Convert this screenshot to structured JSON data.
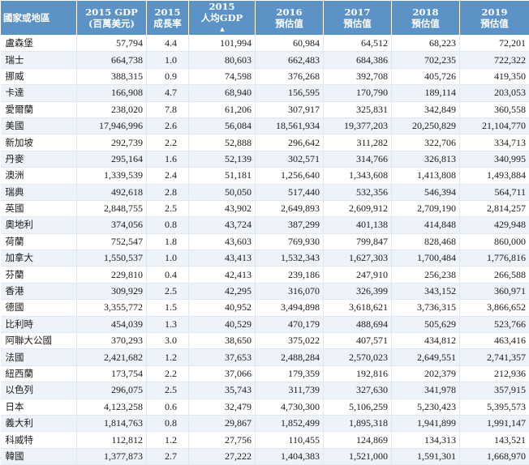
{
  "header": {
    "country": "國家或地區",
    "gdp": [
      "2015 GDP",
      "(百萬美元)"
    ],
    "growth": [
      "2015",
      "成長率"
    ],
    "per_capita": [
      "2015",
      "人均GDP"
    ],
    "y2016": [
      "2016",
      "預估值"
    ],
    "y2017": [
      "2017",
      "預估值"
    ],
    "y2018": [
      "2018",
      "預估值"
    ],
    "y2019": [
      "2019",
      "預估值"
    ]
  },
  "rows": [
    [
      "盧森堡",
      "57,794",
      "4.4",
      "101,994",
      "60,984",
      "64,512",
      "68,223",
      "72,201"
    ],
    [
      "瑞士",
      "664,738",
      "1.0",
      "80,603",
      "662,483",
      "684,386",
      "702,235",
      "722,322"
    ],
    [
      "挪威",
      "388,315",
      "0.9",
      "74,598",
      "376,268",
      "392,708",
      "405,726",
      "419,350"
    ],
    [
      "卡達",
      "166,908",
      "4.7",
      "68,940",
      "156,595",
      "170,790",
      "189,114",
      "203,053"
    ],
    [
      "愛爾蘭",
      "238,020",
      "7.8",
      "61,206",
      "307,917",
      "325,831",
      "342,849",
      "360,558"
    ],
    [
      "美國",
      "17,946,996",
      "2.6",
      "56,084",
      "18,561,934",
      "19,377,203",
      "20,250,829",
      "21,104,770"
    ],
    [
      "新加坡",
      "292,739",
      "2.2",
      "52,888",
      "296,642",
      "311,282",
      "322,706",
      "334,713"
    ],
    [
      "丹麥",
      "295,164",
      "1.6",
      "52,139",
      "302,571",
      "314,766",
      "326,813",
      "340,995"
    ],
    [
      "澳洲",
      "1,339,539",
      "2.4",
      "51,181",
      "1,256,640",
      "1,343,608",
      "1,413,808",
      "1,493,884"
    ],
    [
      "瑞典",
      "492,618",
      "2.8",
      "50,050",
      "517,440",
      "532,356",
      "546,394",
      "564,711"
    ],
    [
      "英國",
      "2,848,755",
      "2.5",
      "43,902",
      "2,649,893",
      "2,609,912",
      "2,709,190",
      "2,814,257"
    ],
    [
      "奧地利",
      "374,056",
      "0.8",
      "43,724",
      "387,299",
      "401,138",
      "414,848",
      "429,948"
    ],
    [
      "荷蘭",
      "752,547",
      "1.8",
      "43,603",
      "769,930",
      "799,847",
      "828,468",
      "860,000"
    ],
    [
      "加拿大",
      "1,550,537",
      "1.0",
      "43,413",
      "1,532,343",
      "1,627,303",
      "1,700,484",
      "1,776,816"
    ],
    [
      "芬蘭",
      "229,810",
      "0.4",
      "42,413",
      "239,186",
      "247,910",
      "256,238",
      "266,588"
    ],
    [
      "香港",
      "309,929",
      "2.5",
      "42,295",
      "316,070",
      "326,399",
      "343,152",
      "360,971"
    ],
    [
      "德國",
      "3,355,772",
      "1.5",
      "40,952",
      "3,494,898",
      "3,618,621",
      "3,736,315",
      "3,866,652"
    ],
    [
      "比利時",
      "454,039",
      "1.3",
      "40,529",
      "470,179",
      "488,694",
      "505,629",
      "523,766"
    ],
    [
      "阿聯大公國",
      "370,293",
      "3.0",
      "38,650",
      "375,022",
      "407,571",
      "434,812",
      "463,416"
    ],
    [
      "法國",
      "2,421,682",
      "1.2",
      "37,653",
      "2,488,284",
      "2,570,023",
      "2,649,551",
      "2,741,357"
    ],
    [
      "紐西蘭",
      "173,754",
      "2.2",
      "37,066",
      "179,359",
      "192,816",
      "202,379",
      "212,936"
    ],
    [
      "以色列",
      "296,075",
      "2.5",
      "35,743",
      "311,739",
      "327,630",
      "341,978",
      "357,915"
    ],
    [
      "日本",
      "4,123,258",
      "0.6",
      "32,479",
      "4,730,300",
      "5,106,259",
      "5,230,423",
      "5,395,573"
    ],
    [
      "義大利",
      "1,814,763",
      "0.8",
      "29,867",
      "1,852,499",
      "1,895,318",
      "1,941,899",
      "1,991,147"
    ],
    [
      "科威特",
      "112,812",
      "1.2",
      "27,756",
      "110,455",
      "124,869",
      "134,313",
      "143,521"
    ],
    [
      "韓國",
      "1,377,873",
      "2.7",
      "27,222",
      "1,404,383",
      "1,521,000",
      "1,591,301",
      "1,668,970"
    ]
  ]
}
